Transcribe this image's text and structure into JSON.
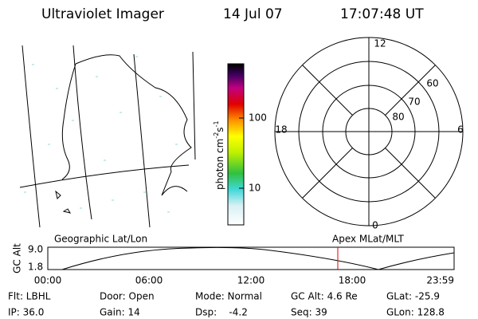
{
  "header": {
    "title": "Ultraviolet Imager",
    "date": "14 Jul 07",
    "time": "17:07:48 UT"
  },
  "colorbar": {
    "label": {
      "text": "photon cm",
      "exp1": "-2",
      "unit2": "s",
      "exp2": "-1"
    },
    "ticks": [
      "100",
      "10"
    ]
  },
  "polar": {
    "mlt_labels": {
      "top": "12",
      "left": "18",
      "right": "6",
      "bottom": "0"
    },
    "lat_labels": [
      "60",
      "70",
      "80"
    ]
  },
  "timeline": {
    "left_label": "Geographic Lat/Lon",
    "right_label": "Apex MLat/MLT",
    "y_label": "GC Alt",
    "yticks": [
      "9.0",
      "1.8"
    ],
    "xticks": [
      "00:00",
      "06:00",
      "12:00",
      "18:00",
      "23:59"
    ]
  },
  "status": {
    "rows": [
      [
        "Flt: LBHL",
        "Door: Open",
        "Mode: Normal",
        "GC Alt: 4.6 Re",
        "GLat: -25.9"
      ],
      [
        "IP: 36.0",
        "Gain: 14",
        "Dsp:    -4.2",
        "Seq: 39",
        "GLon: 128.8"
      ]
    ]
  }
}
